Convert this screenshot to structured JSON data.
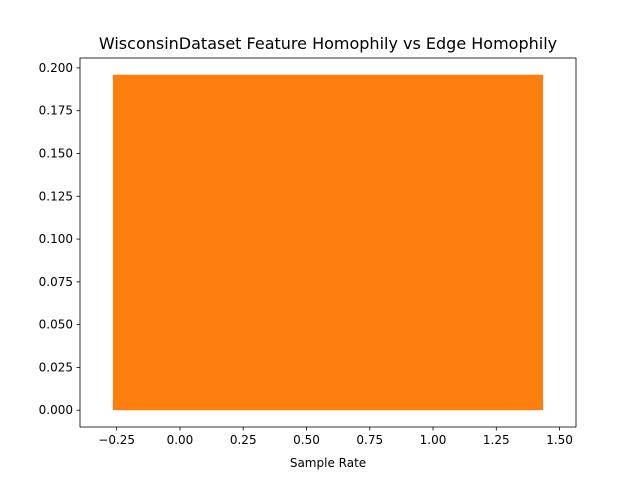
{
  "chart_data": {
    "type": "bar",
    "title": "WisconsinDataset Feature Homophily vs Edge Homophily",
    "xlabel": "Sample Rate",
    "ylabel": "",
    "grid": false,
    "legend": "none",
    "xlim": [
      -0.395,
      1.565
    ],
    "ylim": [
      -0.0098,
      0.2058
    ],
    "xticks": [
      -0.25,
      0.0,
      0.25,
      0.5,
      0.75,
      1.0,
      1.25,
      1.5
    ],
    "xtick_labels": [
      "−0.25",
      "0.00",
      "0.25",
      "0.50",
      "0.75",
      "1.00",
      "1.25",
      "1.50"
    ],
    "yticks": [
      0.0,
      0.025,
      0.05,
      0.075,
      0.1,
      0.125,
      0.15,
      0.175,
      0.2
    ],
    "ytick_labels": [
      "0.000",
      "0.025",
      "0.050",
      "0.075",
      "0.100",
      "0.125",
      "0.150",
      "0.175",
      "0.200"
    ],
    "bars": [
      {
        "x_start": -0.265,
        "x_end": 1.435,
        "value": 0.196,
        "color": "#ff7f0e"
      }
    ]
  }
}
